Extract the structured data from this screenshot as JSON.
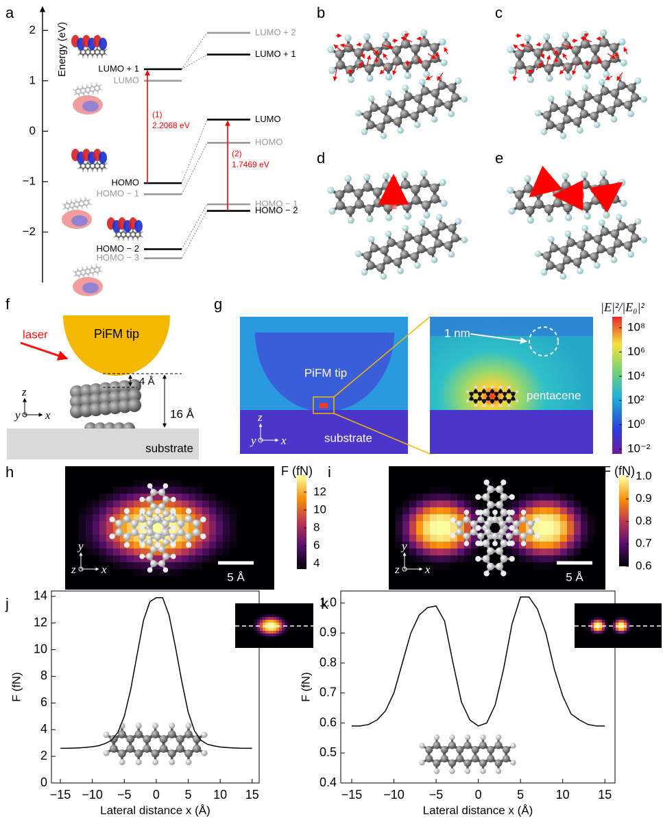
{
  "panel_labels": [
    "a",
    "b",
    "c",
    "d",
    "e",
    "f",
    "g",
    "h",
    "i",
    "j",
    "k"
  ],
  "energy_diagram": {
    "y_label": "Energy (eV)",
    "ylim": [
      -3.0,
      2.33
    ],
    "yticks": [
      {
        "value": -2,
        "label": "−2"
      },
      {
        "value": -1,
        "label": "−1"
      },
      0,
      1,
      2
    ],
    "left_levels": [
      {
        "label": "LUMO + 1",
        "value": 1.23,
        "color": "#000000"
      },
      {
        "label": "LUMO",
        "value": 1.0,
        "color": "#999999"
      },
      {
        "label": "HOMO",
        "value": -1.03,
        "color": "#000000"
      },
      {
        "label": "HOMO − 1",
        "value": -1.25,
        "color": "#999999"
      },
      {
        "label": "HOMO − 2",
        "value": -2.34,
        "color": "#000000"
      },
      {
        "label": "HOMO − 3",
        "value": -2.52,
        "color": "#999999"
      }
    ],
    "right_levels": [
      {
        "label": "LUMO + 2",
        "value": 1.95,
        "color": "#999999"
      },
      {
        "label": "LUMO + 1",
        "value": 1.52,
        "color": "#000000"
      },
      {
        "label": "LUMO",
        "value": 0.23,
        "color": "#000000"
      },
      {
        "label": "HOMO",
        "value": -0.23,
        "color": "#999999"
      },
      {
        "label": "HOMO − 1",
        "value": -1.45,
        "color": "#999999"
      },
      {
        "label": "HOMO − 2",
        "value": -1.58,
        "color": "#000000"
      }
    ],
    "transitions": [
      {
        "number": "(1)",
        "energy": "2.2068 eV",
        "color": "#ff0000"
      },
      {
        "number": "(2)",
        "energy": "1.7469 eV",
        "color": "#ff0000"
      }
    ]
  },
  "panel_f": {
    "tip_label": "PiFM tip",
    "laser_label": "laser",
    "gap_label": "4 Å",
    "height_label": "16 Å",
    "substrate_label": "substrate",
    "axes": {
      "z": "z",
      "y": "y",
      "x": "x"
    }
  },
  "panel_g": {
    "tip_label": "PiFM tip",
    "substrate_label": "substrate",
    "scale_label": "1 nm",
    "molecule_label": "pentacene",
    "axes": {
      "z": "z",
      "y": "y",
      "x": "x"
    },
    "colorbar": {
      "title": "|E|²/|E₀|²",
      "log": true,
      "clim": [
        0.004,
        800000000
      ],
      "ticks": [
        {
          "value": 100000000,
          "label": "10⁸"
        },
        {
          "value": 1000000,
          "label": "10⁶"
        },
        {
          "value": 10000,
          "label": "10⁴"
        },
        {
          "value": 100,
          "label": "10²"
        },
        {
          "value": 1,
          "label": "10⁰"
        },
        {
          "value": 0.01,
          "label": "10⁻²"
        }
      ]
    }
  },
  "panel_h": {
    "scale_bar": "5 Å",
    "axes": {
      "y": "y",
      "z": "z",
      "x": "x"
    },
    "colorbar": {
      "title": "F (fN)",
      "clim": [
        3.4,
        13.9
      ],
      "ticks": [
        12,
        10,
        8,
        6,
        4
      ]
    }
  },
  "panel_i": {
    "scale_bar": "5 Å",
    "axes": {
      "y": "y",
      "z": "z",
      "x": "x"
    },
    "colorbar": {
      "title": "F (fN)",
      "clim": [
        0.6,
        1.0
      ],
      "ticks": [
        {
          "value": 1.0,
          "label": "1.0"
        },
        0.9,
        0.8,
        0.7,
        0.6
      ]
    }
  },
  "chart_data": [
    {
      "type": "line",
      "color": "#000000",
      "x_label": "Lateral distance x (Å)",
      "y_label": "F (fN)",
      "x": [
        -15,
        -14,
        -13,
        -12,
        -11,
        -10,
        -9,
        -8,
        -7,
        -6,
        -5,
        -4,
        -3,
        -2,
        -1,
        0,
        1,
        2,
        3,
        4,
        5,
        6,
        7,
        8,
        9,
        10,
        11,
        12,
        13,
        14,
        15
      ],
      "values": [
        2.6,
        2.6,
        2.62,
        2.64,
        2.67,
        2.72,
        2.8,
        2.95,
        3.2,
        3.8,
        5.0,
        7.0,
        9.6,
        12.2,
        13.6,
        13.9,
        13.9,
        12.6,
        10.2,
        7.6,
        5.3,
        3.9,
        3.2,
        2.9,
        2.78,
        2.7,
        2.66,
        2.63,
        2.61,
        2.6,
        2.6
      ],
      "xlim": [
        -16.4,
        16.1
      ],
      "ylim": [
        0,
        14.4
      ],
      "xticks": [
        {
          "value": -15,
          "label": "−15"
        },
        {
          "value": -10,
          "label": "−10"
        },
        {
          "value": -5,
          "label": "−5"
        },
        0,
        5,
        10,
        15
      ],
      "yticks": [
        0,
        2,
        4,
        6,
        8,
        10,
        12,
        14
      ]
    },
    {
      "type": "line",
      "color": "#000000",
      "x_label": "Lateral distance x (Å)",
      "y_label": "F (fN)",
      "x": [
        -15,
        -14,
        -13,
        -12,
        -11,
        -10,
        -9,
        -8,
        -7,
        -6,
        -5,
        -4,
        -3,
        -2,
        -1,
        0,
        1,
        2,
        3,
        4,
        5,
        6,
        7,
        8,
        9,
        10,
        11,
        12,
        13,
        14,
        15
      ],
      "values": [
        0.59,
        0.59,
        0.595,
        0.61,
        0.64,
        0.7,
        0.8,
        0.9,
        0.96,
        0.985,
        0.99,
        0.94,
        0.8,
        0.67,
        0.61,
        0.59,
        0.6,
        0.66,
        0.78,
        0.93,
        1.02,
        1.02,
        0.98,
        0.9,
        0.78,
        0.69,
        0.63,
        0.61,
        0.595,
        0.59,
        0.59
      ],
      "xlim": [
        -16.3,
        16.2
      ],
      "ylim": [
        0.4,
        1.04
      ],
      "xticks": [
        {
          "value": -15,
          "label": "−15"
        },
        {
          "value": -10,
          "label": "−10"
        },
        {
          "value": -5,
          "label": "−5"
        },
        0,
        5,
        10,
        15
      ],
      "yticks": [
        0.4,
        0.5,
        0.6,
        0.7,
        0.8,
        0.9,
        {
          "value": 1.0,
          "label": "1.0"
        }
      ]
    }
  ]
}
